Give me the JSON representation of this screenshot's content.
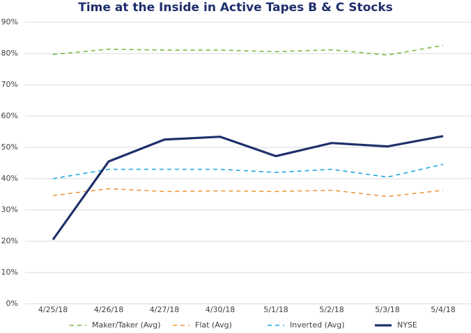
{
  "chart_data": {
    "type": "line",
    "title": "Time at the Inside in Active Tapes B & C Stocks",
    "categories": [
      "4/25/18",
      "4/26/18",
      "4/27/18",
      "4/30/18",
      "5/1/18",
      "5/2/18",
      "5/3/18",
      "5/4/18"
    ],
    "series": [
      {
        "name": "Maker/Taker (Avg)",
        "color": "#7ab648",
        "dashed": true,
        "values": [
          79.7,
          81.4,
          81.1,
          81.1,
          80.6,
          81.2,
          79.5,
          82.6
        ]
      },
      {
        "name": "Flat (Avg)",
        "color": "#f0973a",
        "dashed": true,
        "values": [
          34.6,
          36.8,
          35.9,
          36.1,
          35.9,
          36.3,
          34.3,
          36.3
        ]
      },
      {
        "name": "Inverted (Avg)",
        "color": "#1aa7de",
        "dashed": true,
        "values": [
          40.0,
          43.0,
          43.0,
          43.0,
          42.0,
          43.0,
          40.5,
          44.6
        ]
      },
      {
        "name": "NYSE",
        "color": "#1f2f6b",
        "dashed": false,
        "values": [
          20.5,
          45.5,
          52.5,
          53.4,
          47.2,
          51.4,
          50.3,
          53.6
        ]
      }
    ],
    "ylim": [
      0,
      90
    ],
    "yticks": [
      {
        "value": 0,
        "label": "0%"
      },
      {
        "value": 10,
        "label": "10%"
      },
      {
        "value": 20,
        "label": "20%"
      },
      {
        "value": 30,
        "label": "30%"
      },
      {
        "value": 40,
        "label": "40%"
      },
      {
        "value": 50,
        "label": "50%"
      },
      {
        "value": 60,
        "label": "60%"
      },
      {
        "value": 70,
        "label": "70%"
      },
      {
        "value": 80,
        "label": "80%"
      },
      {
        "value": 90,
        "label": "90%"
      }
    ],
    "grid": true,
    "legend": "bottom"
  }
}
